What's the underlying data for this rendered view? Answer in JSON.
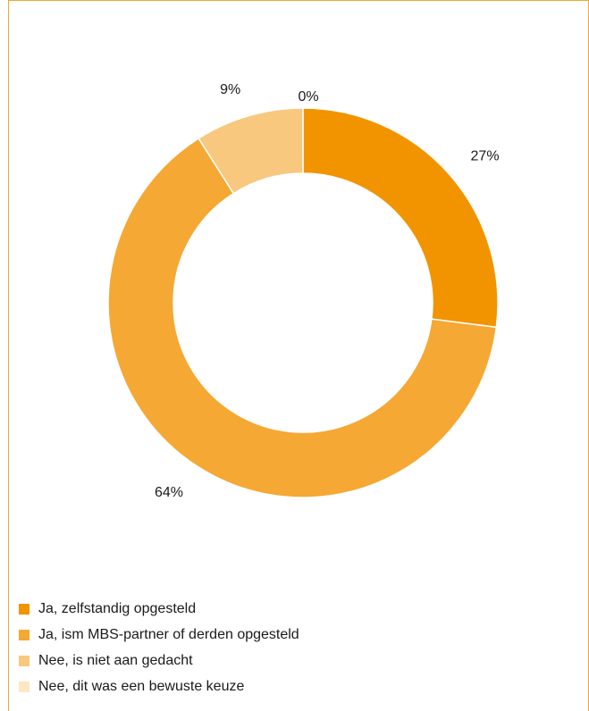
{
  "chart_data": {
    "type": "pie",
    "variant": "donut",
    "title": "",
    "categories": [
      "Ja, zelfstandig opgesteld",
      "Ja, ism MBS-partner of derden opgesteld",
      "Nee, is niet aan gedacht",
      "Nee, dit was een bewuste keuze"
    ],
    "values": [
      27,
      64,
      9,
      0
    ],
    "data_labels": [
      "27%",
      "64%",
      "9%",
      "0%"
    ],
    "unit": "%",
    "colors": [
      "#f29400",
      "#f5a833",
      "#f8c87e",
      "#fde7c4"
    ],
    "legend_position": "bottom-left"
  }
}
